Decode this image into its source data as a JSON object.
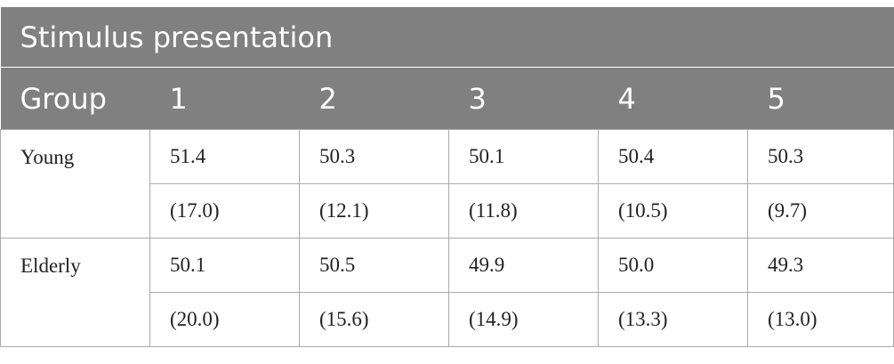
{
  "table": {
    "title": "Stimulus presentation",
    "header": [
      "Group",
      "1",
      "2",
      "3",
      "4",
      "5"
    ],
    "rows": [
      {
        "group": "Young",
        "means": [
          "51.4",
          "50.3",
          "50.1",
          "50.4",
          "50.3"
        ],
        "sds": [
          "(17.0)",
          "(12.1)",
          "(11.8)",
          "(10.5)",
          "(9.7)"
        ]
      },
      {
        "group": "Elderly",
        "means": [
          "50.1",
          "50.5",
          "49.9",
          "50.0",
          "49.3"
        ],
        "sds": [
          "(20.0)",
          "(15.6)",
          "(14.9)",
          "(13.3)",
          "(13.0)"
        ]
      }
    ]
  }
}
